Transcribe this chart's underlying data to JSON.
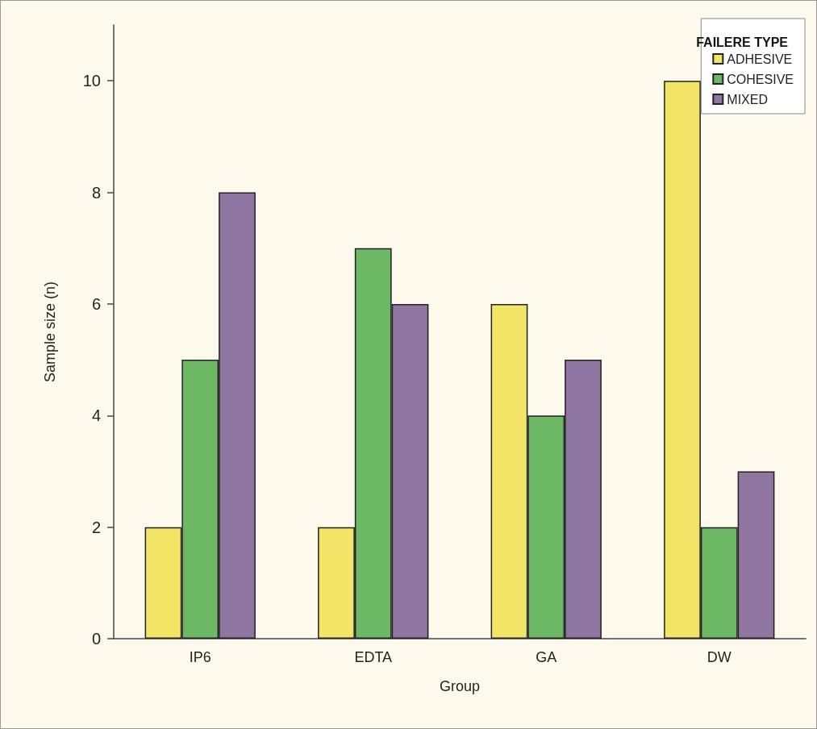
{
  "chart_data": {
    "type": "bar",
    "xlabel": "Group",
    "ylabel": "Sample size (n)",
    "legend_title": "FAILERE TYPE",
    "categories": [
      "IP6",
      "EDTA",
      "GA",
      "DW"
    ],
    "series": [
      {
        "name": "ADHESIVE",
        "color": "#f2e466",
        "values": [
          2,
          2,
          6,
          10
        ]
      },
      {
        "name": "COHESIVE",
        "color": "#6cb865",
        "values": [
          5,
          7,
          4,
          2
        ]
      },
      {
        "name": "MIXED",
        "color": "#8e76a0",
        "values": [
          8,
          6,
          5,
          3
        ]
      }
    ],
    "ylim": [
      0,
      11
    ],
    "yticks": [
      0,
      2,
      4,
      6,
      8,
      10
    ],
    "grid": false,
    "legend": "top right"
  }
}
